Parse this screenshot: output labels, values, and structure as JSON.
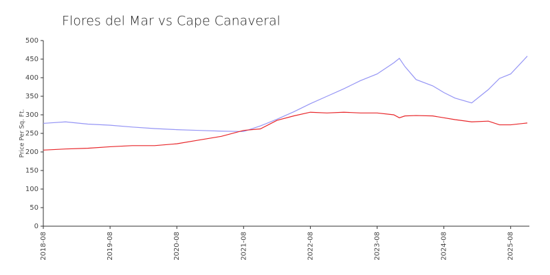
{
  "chart_data": {
    "type": "line",
    "title": "Flores del Mar vs Cape Canaveral",
    "y_label": "Price Per Sq. Ft.",
    "x": [
      "2018-08",
      "2018-12",
      "2019-04",
      "2019-08",
      "2019-12",
      "2020-04",
      "2020-08",
      "2020-12",
      "2021-04",
      "2021-08",
      "2021-11",
      "2022-02",
      "2022-05",
      "2022-08",
      "2022-11",
      "2023-02",
      "2023-05",
      "2023-08",
      "2023-11",
      "2023-12",
      "2024-01",
      "2024-03",
      "2024-06",
      "2024-08",
      "2024-10",
      "2025-01",
      "2025-04",
      "2025-06",
      "2025-08",
      "2025-11"
    ],
    "series": [
      {
        "color": "#9595f5",
        "values": [
          277,
          281,
          275,
          272,
          267,
          263,
          260,
          258,
          256,
          255,
          270,
          288,
          308,
          330,
          350,
          370,
          392,
          410,
          440,
          452,
          430,
          395,
          378,
          360,
          345,
          332,
          368,
          398,
          410,
          458
        ]
      },
      {
        "color": "#e8262a",
        "values": [
          205,
          208,
          210,
          214,
          217,
          217,
          222,
          232,
          242,
          258,
          262,
          285,
          297,
          307,
          305,
          307,
          305,
          305,
          300,
          292,
          297,
          298,
          297,
          292,
          287,
          281,
          283,
          273,
          273,
          278
        ]
      }
    ],
    "xlim": [
      "2018-08",
      "2025-11"
    ],
    "xticks": [
      "2018-08",
      "2019-08",
      "2020-08",
      "2021-08",
      "2022-08",
      "2023-08",
      "2024-08",
      "2025-08"
    ],
    "ylim": [
      0,
      500
    ],
    "yticks": [
      0,
      50,
      100,
      150,
      200,
      250,
      300,
      350,
      400,
      450,
      500
    ],
    "grid": false
  }
}
